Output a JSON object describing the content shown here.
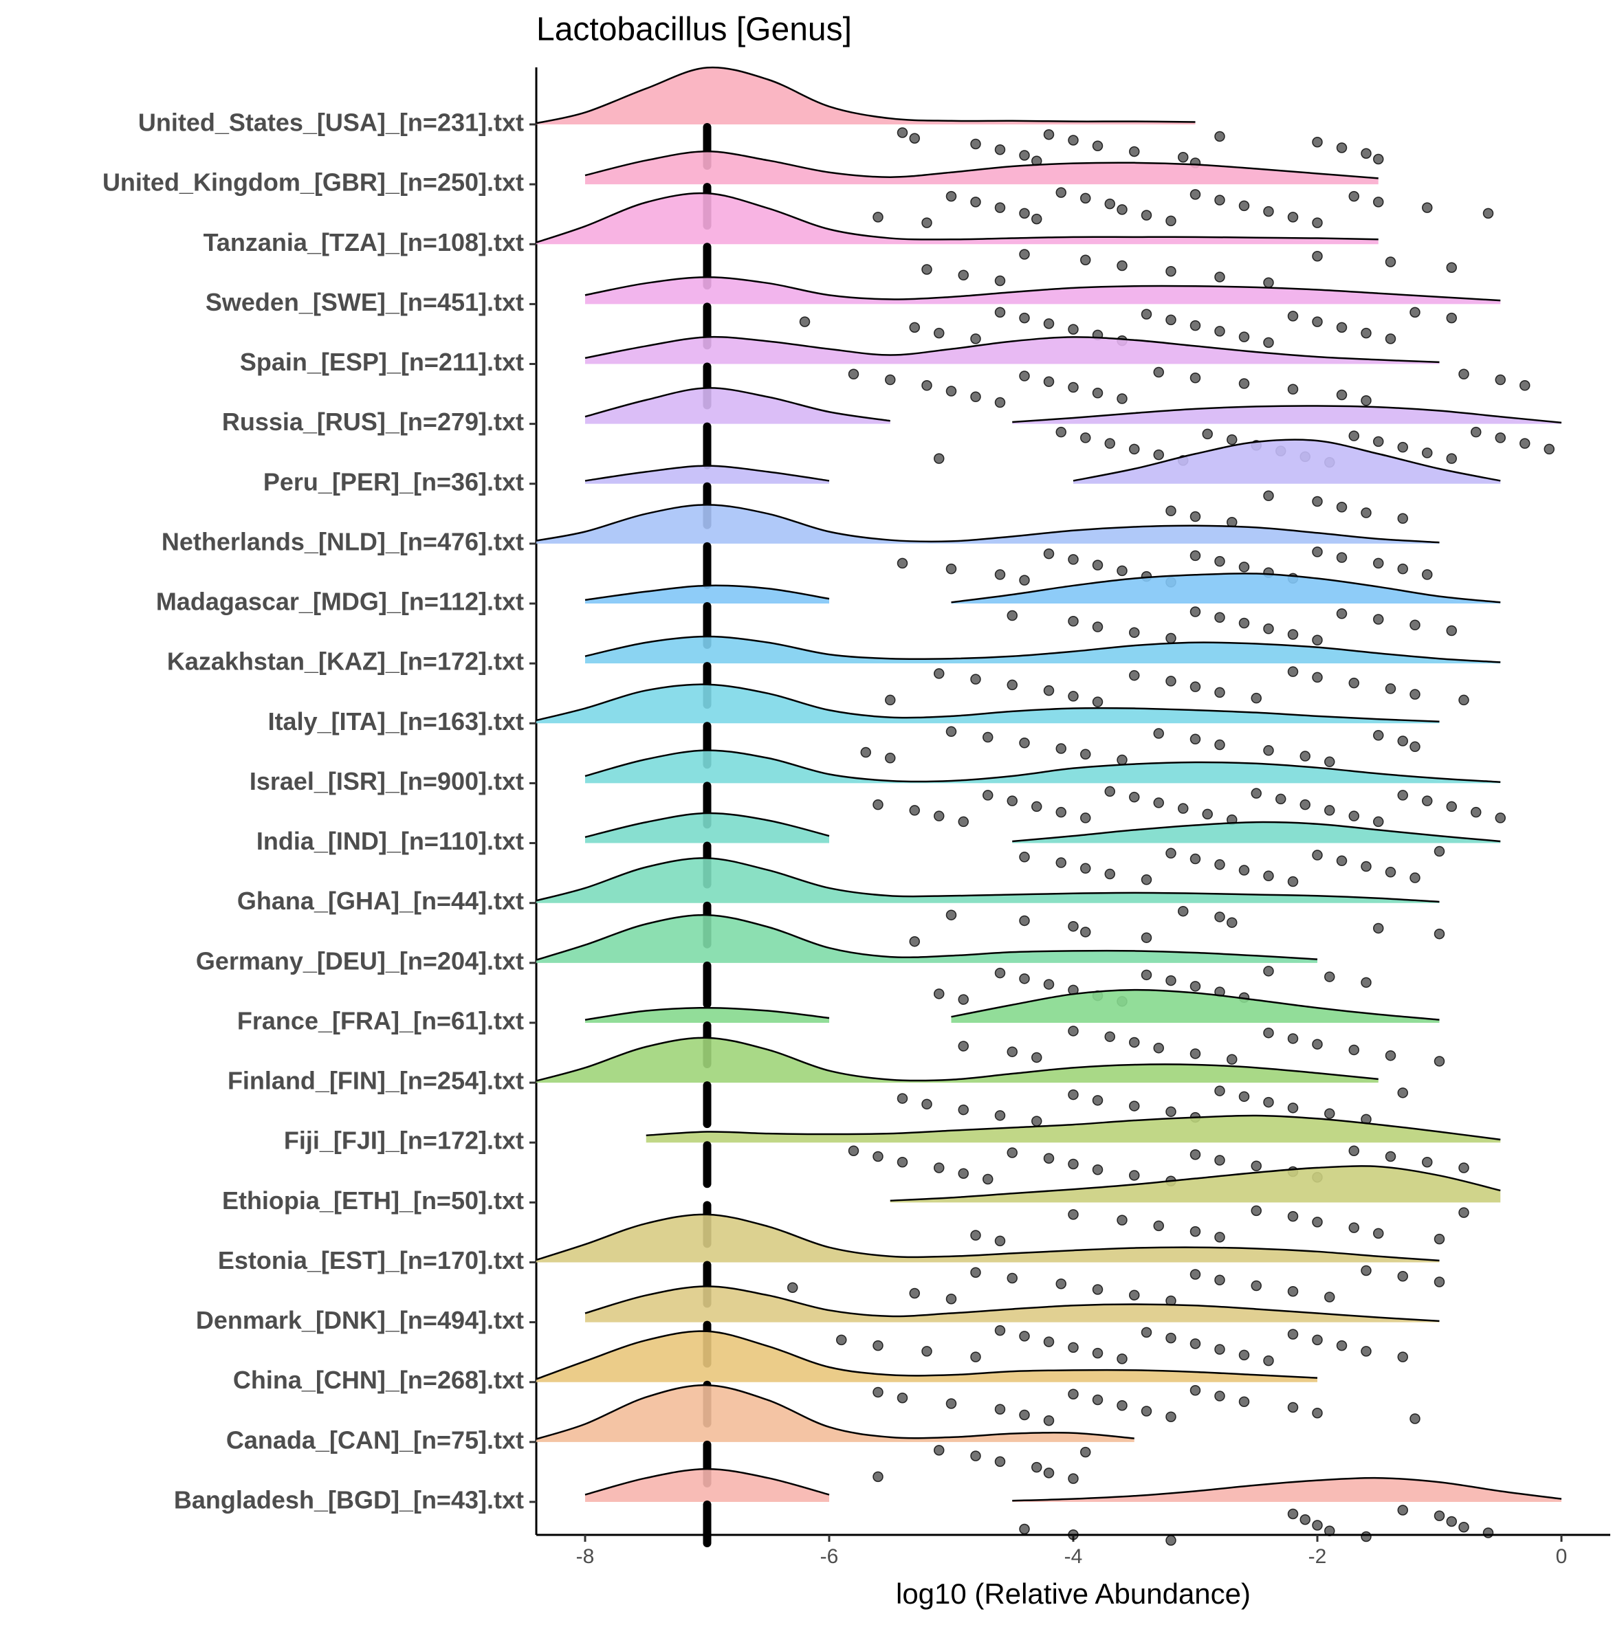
{
  "chart_data": {
    "type": "raincloud",
    "title": "Lactobacillus [Genus]",
    "xlabel": "log10 (Relative Abundance)",
    "xlim": [
      -8.4,
      0.4
    ],
    "xticks": [
      -8,
      -6,
      -4,
      -2,
      0
    ],
    "density_x": [
      -8.4,
      -8,
      -7.5,
      -7,
      -6.5,
      -6,
      -5.5,
      -5,
      -4.5,
      -4,
      -3.5,
      -3,
      -2.5,
      -2,
      -1.5,
      -1,
      -0.5,
      0
    ],
    "categories": [
      "United_States_[USA]_[n=231].txt",
      "United_Kingdom_[GBR]_[n=250].txt",
      "Tanzania_[TZA]_[n=108].txt",
      "Sweden_[SWE]_[n=451].txt",
      "Spain_[ESP]_[n=211].txt",
      "Russia_[RUS]_[n=279].txt",
      "Peru_[PER]_[n=36].txt",
      "Netherlands_[NLD]_[n=476].txt",
      "Madagascar_[MDG]_[n=112].txt",
      "Kazakhstan_[KAZ]_[n=172].txt",
      "Italy_[ITA]_[n=163].txt",
      "Israel_[ISR]_[n=900].txt",
      "India_[IND]_[n=110].txt",
      "Ghana_[GHA]_[n=44].txt",
      "Germany_[DEU]_[n=204].txt",
      "France_[FRA]_[n=61].txt",
      "Finland_[FIN]_[n=254].txt",
      "Fiji_[FJI]_[n=172].txt",
      "Ethiopia_[ETH]_[n=50].txt",
      "Estonia_[EST]_[n=170].txt",
      "Denmark_[DNK]_[n=494].txt",
      "China_[CHN]_[n=268].txt",
      "Canada_[CAN]_[n=75].txt",
      "Bangladesh_[BGD]_[n=43].txt"
    ],
    "series": [
      {
        "color": "#F9AEBD",
        "median": -7,
        "density": [
          0.02,
          0.2,
          0.6,
          0.95,
          0.75,
          0.3,
          0.1,
          0.06,
          0.06,
          0.05,
          0.05,
          0.04,
          null,
          null,
          null,
          null,
          null,
          null
        ],
        "points": [
          -5.4,
          -5.3,
          -4.8,
          -4.6,
          -4.4,
          -4.3,
          -4.2,
          -4.0,
          -3.8,
          -3.5,
          -3.1,
          -3.0,
          -2.8,
          -2.0,
          -1.8,
          -1.6,
          -1.5
        ]
      },
      {
        "color": "#F9ACCD",
        "median": -7,
        "density": [
          null,
          0.15,
          0.4,
          0.55,
          0.4,
          0.2,
          0.12,
          0.2,
          0.3,
          0.35,
          0.36,
          0.33,
          0.26,
          0.18,
          0.1,
          null,
          null,
          null
        ],
        "points": [
          -5.6,
          -5.2,
          -5.0,
          -4.8,
          -4.6,
          -4.4,
          -4.3,
          -4.1,
          -3.9,
          -3.7,
          -3.6,
          -3.4,
          -3.2,
          -3.0,
          -2.8,
          -2.6,
          -2.4,
          -2.2,
          -2.0,
          -1.7,
          -1.5,
          -1.1,
          -0.6
        ]
      },
      {
        "color": "#F7ACE0",
        "median": -7,
        "density": [
          0.03,
          0.3,
          0.7,
          0.85,
          0.6,
          0.25,
          0.1,
          0.08,
          0.1,
          0.12,
          0.12,
          0.12,
          0.11,
          0.1,
          0.08,
          null,
          null,
          null
        ],
        "points": [
          -5.2,
          -4.9,
          -4.6,
          -4.4,
          -3.9,
          -3.6,
          -3.2,
          -2.8,
          -2.4,
          -2.0,
          -1.4,
          -0.9
        ]
      },
      {
        "color": "#F1ADEB",
        "median": -7,
        "density": [
          null,
          0.15,
          0.35,
          0.45,
          0.35,
          0.15,
          0.08,
          0.12,
          0.2,
          0.27,
          0.3,
          0.3,
          0.28,
          0.24,
          0.18,
          0.12,
          0.06,
          null
        ],
        "points": [
          -6.2,
          -5.3,
          -5.1,
          -4.8,
          -4.6,
          -4.4,
          -4.2,
          -4.0,
          -3.8,
          -3.6,
          -3.4,
          -3.2,
          -3.0,
          -2.8,
          -2.6,
          -2.4,
          -2.2,
          -2.0,
          -1.8,
          -1.6,
          -1.4,
          -1.2,
          -0.9
        ]
      },
      {
        "color": "#E6B2F2",
        "median": -7,
        "density": [
          null,
          0.1,
          0.3,
          0.45,
          0.38,
          0.25,
          0.15,
          0.25,
          0.38,
          0.45,
          0.4,
          0.3,
          0.2,
          0.12,
          0.07,
          0.03,
          null,
          null
        ],
        "points": [
          -5.8,
          -5.5,
          -5.2,
          -5.0,
          -4.8,
          -4.6,
          -4.4,
          -4.2,
          -4.0,
          -3.8,
          -3.6,
          -3.3,
          -3.0,
          -2.6,
          -2.2,
          -1.8,
          -1.6,
          -0.8,
          -0.5,
          -0.3
        ]
      },
      {
        "color": "#D7B7F6",
        "median": -7,
        "density": [
          null,
          0.12,
          0.4,
          0.6,
          0.45,
          0.2,
          0.05,
          null,
          0.03,
          0.1,
          0.18,
          0.25,
          0.29,
          0.3,
          0.28,
          0.22,
          0.12,
          0.02
        ],
        "points": [
          -5.1,
          -4.1,
          -3.9,
          -3.7,
          -3.5,
          -3.3,
          -3.1,
          -2.9,
          -2.7,
          -2.5,
          -2.3,
          -2.1,
          -1.9,
          -1.7,
          -1.5,
          -1.3,
          -1.1,
          -0.9,
          -0.7,
          -0.5,
          -0.3,
          -0.1
        ]
      },
      {
        "color": "#C3BBF8",
        "median": -7,
        "density": [
          null,
          0.05,
          0.2,
          0.3,
          0.2,
          0.05,
          null,
          null,
          null,
          0.05,
          0.25,
          0.5,
          0.7,
          0.72,
          0.5,
          0.25,
          0.05,
          null
        ],
        "points": [
          -3.2,
          -3.0,
          -2.7,
          -2.4,
          -2.0,
          -1.8,
          -1.6,
          -1.3
        ]
      },
      {
        "color": "#A7C3F8",
        "median": -7,
        "density": [
          0.05,
          0.2,
          0.5,
          0.65,
          0.5,
          0.2,
          0.06,
          0.04,
          0.12,
          0.22,
          0.28,
          0.3,
          0.27,
          0.18,
          0.08,
          0.02,
          null,
          null
        ],
        "points": [
          -5.4,
          -5.0,
          -4.6,
          -4.4,
          -4.2,
          -4.0,
          -3.8,
          -3.6,
          -3.4,
          -3.2,
          -3.0,
          -2.8,
          -2.6,
          -2.4,
          -2.2,
          -2.0,
          -1.8,
          -1.5,
          -1.3,
          -1.1
        ]
      },
      {
        "color": "#82C6F7",
        "median": -7,
        "density": [
          null,
          0.06,
          0.2,
          0.3,
          0.25,
          0.08,
          null,
          0.02,
          0.15,
          0.3,
          0.42,
          0.48,
          0.5,
          0.42,
          0.28,
          0.12,
          0.02,
          null
        ],
        "points": [
          -4.5,
          -4.0,
          -3.8,
          -3.5,
          -3.2,
          -3.0,
          -2.8,
          -2.6,
          -2.4,
          -2.2,
          -2.0,
          -1.8,
          -1.5,
          -1.2,
          -0.9
        ]
      },
      {
        "color": "#7ECFF1",
        "median": -7,
        "density": [
          null,
          0.12,
          0.35,
          0.45,
          0.35,
          0.15,
          0.08,
          0.08,
          0.12,
          0.2,
          0.3,
          0.35,
          0.33,
          0.27,
          0.17,
          0.08,
          0.02,
          null
        ],
        "points": [
          -5.5,
          -5.1,
          -4.8,
          -4.5,
          -4.2,
          -4.0,
          -3.8,
          -3.5,
          -3.2,
          -3.0,
          -2.8,
          -2.5,
          -2.2,
          -2.0,
          -1.7,
          -1.4,
          -1.2,
          -0.8
        ]
      },
      {
        "color": "#7DD8E8",
        "median": -7,
        "density": [
          0.05,
          0.25,
          0.55,
          0.65,
          0.5,
          0.22,
          0.1,
          0.12,
          0.2,
          0.25,
          0.25,
          0.22,
          0.18,
          0.12,
          0.07,
          0.03,
          null,
          null
        ],
        "points": [
          -5.7,
          -5.5,
          -5.0,
          -4.7,
          -4.4,
          -4.1,
          -3.9,
          -3.6,
          -3.3,
          -3.0,
          -2.8,
          -2.4,
          -2.1,
          -1.9,
          -1.5,
          -1.3,
          -1.2
        ]
      },
      {
        "color": "#7CDCDB",
        "median": -7,
        "density": [
          null,
          0.12,
          0.4,
          0.55,
          0.42,
          0.15,
          0.04,
          0.04,
          0.12,
          0.25,
          0.32,
          0.35,
          0.33,
          0.26,
          0.16,
          0.08,
          0.02,
          null
        ],
        "points": [
          -5.6,
          -5.3,
          -5.1,
          -4.9,
          -4.7,
          -4.5,
          -4.3,
          -4.1,
          -3.9,
          -3.7,
          -3.5,
          -3.3,
          -3.1,
          -2.9,
          -2.7,
          -2.5,
          -2.3,
          -2.1,
          -1.9,
          -1.7,
          -1.5,
          -1.3,
          -1.1,
          -0.9,
          -0.7,
          -0.5
        ]
      },
      {
        "color": "#7BDCCB",
        "median": -7,
        "density": [
          null,
          0.1,
          0.35,
          0.5,
          0.38,
          0.12,
          null,
          null,
          0.03,
          0.12,
          0.22,
          0.3,
          0.35,
          0.32,
          0.22,
          0.12,
          0.03,
          null
        ],
        "points": [
          -4.4,
          -4.1,
          -3.9,
          -3.7,
          -3.4,
          -3.2,
          -3.0,
          -2.8,
          -2.6,
          -2.4,
          -2.2,
          -2.0,
          -1.8,
          -1.6,
          -1.4,
          -1.2,
          -1.0
        ]
      },
      {
        "color": "#7DDDBE",
        "median": -7,
        "density": [
          0.04,
          0.25,
          0.6,
          0.75,
          0.55,
          0.25,
          0.12,
          0.12,
          0.14,
          0.16,
          0.17,
          0.16,
          0.14,
          0.12,
          0.08,
          0.02,
          null,
          null
        ],
        "points": [
          -5.3,
          -5.0,
          -4.4,
          -4.0,
          -3.9,
          -3.4,
          -3.1,
          -2.8,
          -2.7,
          -1.5,
          -1.0
        ]
      },
      {
        "color": "#80DCA8",
        "median": -7,
        "density": [
          0.05,
          0.3,
          0.65,
          0.8,
          0.6,
          0.25,
          0.1,
          0.12,
          0.18,
          0.2,
          0.2,
          0.17,
          0.12,
          0.06,
          null,
          null,
          null,
          null
        ],
        "points": [
          -5.1,
          -4.9,
          -4.6,
          -4.4,
          -4.2,
          -4.0,
          -3.8,
          -3.6,
          -3.4,
          -3.2,
          -3.0,
          -2.8,
          -2.6,
          -2.4,
          -1.9,
          -1.6
        ]
      },
      {
        "color": "#86D98E",
        "median": -7,
        "density": [
          null,
          0.05,
          0.2,
          0.25,
          0.2,
          0.08,
          null,
          0.1,
          0.3,
          0.48,
          0.55,
          0.5,
          0.38,
          0.25,
          0.14,
          0.05,
          null,
          null
        ],
        "points": [
          -4.9,
          -4.5,
          -4.3,
          -4.0,
          -3.7,
          -3.5,
          -3.3,
          -3.0,
          -2.7,
          -2.4,
          -2.2,
          -2.0,
          -1.7,
          -1.4,
          -1.0
        ]
      },
      {
        "color": "#A0D57A",
        "median": -7,
        "density": [
          0.03,
          0.25,
          0.6,
          0.75,
          0.55,
          0.2,
          0.05,
          0.05,
          0.15,
          0.25,
          0.3,
          0.3,
          0.25,
          0.16,
          0.06,
          null,
          null,
          null
        ],
        "points": [
          -5.4,
          -5.2,
          -4.9,
          -4.6,
          -4.3,
          -4.0,
          -3.8,
          -3.5,
          -3.2,
          -3.0,
          -2.8,
          -2.6,
          -2.4,
          -2.2,
          -1.9,
          -1.6,
          -1.3
        ]
      },
      {
        "color": "#BAD37A",
        "median": -7,
        "density": [
          null,
          null,
          0.12,
          0.18,
          0.15,
          0.14,
          0.15,
          0.2,
          0.25,
          0.3,
          0.37,
          0.42,
          0.45,
          0.4,
          0.3,
          0.18,
          0.05,
          null
        ],
        "points": [
          -5.8,
          -5.6,
          -5.4,
          -5.1,
          -4.9,
          -4.7,
          -4.5,
          -4.2,
          -4.0,
          -3.8,
          -3.5,
          -3.2,
          -3.0,
          -2.8,
          -2.5,
          -2.2,
          -2.0,
          -1.7,
          -1.4,
          -1.1,
          -0.8
        ]
      },
      {
        "color": "#CBCF7E",
        "median": -7,
        "density": [
          null,
          null,
          null,
          null,
          null,
          null,
          0.03,
          0.08,
          0.15,
          0.22,
          0.3,
          0.4,
          0.5,
          0.58,
          0.6,
          0.45,
          0.2,
          null
        ],
        "points": [
          -4.8,
          -4.6,
          -4.0,
          -3.6,
          -3.3,
          -3.0,
          -2.8,
          -2.5,
          -2.2,
          -2.0,
          -1.7,
          -1.5,
          -1.0,
          -0.8
        ]
      },
      {
        "color": "#D8CC84",
        "median": -7,
        "density": [
          0.04,
          0.3,
          0.65,
          0.8,
          0.6,
          0.25,
          0.1,
          0.1,
          0.15,
          0.2,
          0.24,
          0.25,
          0.23,
          0.18,
          0.1,
          0.03,
          null,
          null
        ],
        "points": [
          -6.3,
          -5.3,
          -5.0,
          -4.8,
          -4.5,
          -4.1,
          -3.8,
          -3.5,
          -3.2,
          -3.0,
          -2.8,
          -2.5,
          -2.2,
          -1.9,
          -1.6,
          -1.3,
          -1.0
        ]
      },
      {
        "color": "#DECB86",
        "median": -7,
        "density": [
          null,
          0.15,
          0.45,
          0.6,
          0.45,
          0.2,
          0.1,
          0.15,
          0.22,
          0.28,
          0.3,
          0.28,
          0.22,
          0.15,
          0.08,
          0.02,
          null,
          null
        ],
        "points": [
          -5.9,
          -5.6,
          -5.2,
          -4.8,
          -4.6,
          -4.4,
          -4.2,
          -4.0,
          -3.8,
          -3.6,
          -3.4,
          -3.2,
          -3.0,
          -2.8,
          -2.6,
          -2.4,
          -2.2,
          -2.0,
          -1.8,
          -1.6,
          -1.3
        ]
      },
      {
        "color": "#E9C77C",
        "median": -7,
        "density": [
          0.05,
          0.35,
          0.7,
          0.85,
          0.6,
          0.25,
          0.12,
          0.12,
          0.18,
          0.2,
          0.2,
          0.17,
          0.12,
          0.07,
          null,
          null,
          null,
          null
        ],
        "points": [
          -5.6,
          -5.4,
          -5.0,
          -4.6,
          -4.4,
          -4.2,
          -4.0,
          -3.8,
          -3.6,
          -3.4,
          -3.2,
          -3.0,
          -2.8,
          -2.6,
          -2.2,
          -2.0,
          -1.2
        ]
      },
      {
        "color": "#F3BE9A",
        "median": -7,
        "density": [
          0.05,
          0.3,
          0.75,
          0.95,
          0.7,
          0.25,
          0.08,
          0.08,
          0.14,
          0.15,
          0.06,
          null,
          null,
          null,
          null,
          null,
          null,
          null
        ],
        "points": [
          -5.6,
          -5.1,
          -4.8,
          -4.6,
          -4.3,
          -4.2,
          -4.0,
          -3.9
        ]
      },
      {
        "color": "#F7B5AE",
        "median": -7,
        "density": [
          null,
          0.12,
          0.4,
          0.55,
          0.4,
          0.12,
          null,
          null,
          0.02,
          0.05,
          0.1,
          0.18,
          0.28,
          0.36,
          0.4,
          0.33,
          0.18,
          0.05
        ],
        "points": [
          -4.4,
          -4.0,
          -3.2,
          -2.2,
          -2.1,
          -2.0,
          -1.9,
          -1.6,
          -1.3,
          -1.0,
          -0.9,
          -0.8,
          -0.6
        ]
      }
    ]
  }
}
